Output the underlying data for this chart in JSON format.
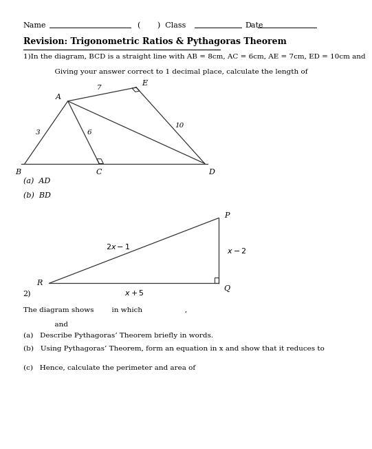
{
  "title": "Revision: Trigonometric Ratios & Pythagoras Theorem",
  "header_name": "Name",
  "header_class": "Class",
  "header_date": "Date",
  "q1_text": "1)In the diagram, BCD is a straight line with AB = 8cm, AC = 6cm, AE = 7cm, ED = 10cm and",
  "q1_text2": "              Giving your answer correct to 1 decimal place, calculate the length of",
  "q1a": "(a)  AD",
  "q1b": "(b)  BD",
  "q2_label": "2)",
  "q2_text1": "The diagram shows        in which                   ,",
  "q2_text2": "              and",
  "q2a": "(a)   Describe Pythagoras’ Theorem briefly in words.",
  "q2b": "(b)   Using Pythagoras’ Theorem, form an equation in x and show that it reduces to",
  "q2c": "(c)   Hence, calculate the perimeter and area of",
  "bg_color": "#ffffff",
  "text_color": "#000000",
  "line_color": "#333333"
}
